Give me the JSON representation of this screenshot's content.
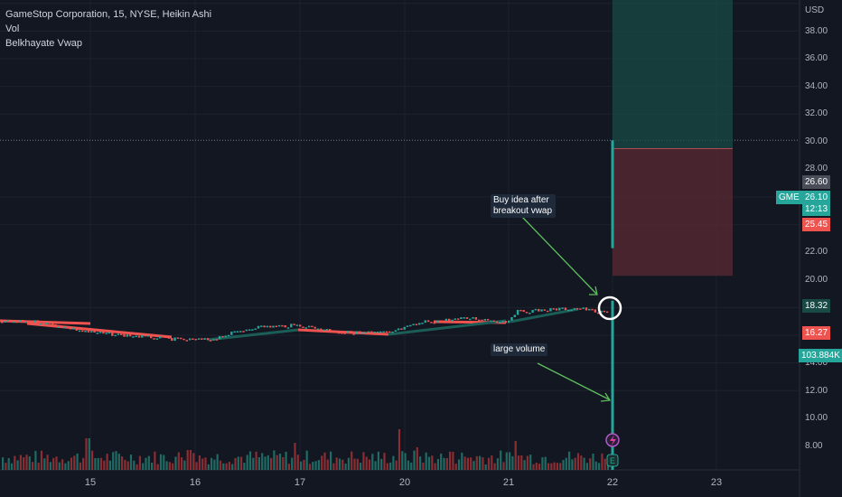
{
  "legend": {
    "title": "GameStop Corporation, 15, NYSE, Heikin Ashi",
    "vol": "Vol",
    "indicator": "Belkhayate Vwap"
  },
  "axis": {
    "currency": "USD",
    "price_ticks": [
      "38.00",
      "36.00",
      "34.00",
      "32.00",
      "30.00",
      "28.00",
      "22.00",
      "20.00",
      "14.00",
      "12.00",
      "10.00",
      "8.00"
    ],
    "time_ticks": [
      "15",
      "16",
      "17",
      "20",
      "21",
      "22",
      "23"
    ]
  },
  "tags": {
    "symbol": "GME",
    "stop_top": "26.60",
    "last_price": "26.10",
    "countdown": "12:13",
    "entry": "25.45",
    "vwap": "18.32",
    "target_low": "16.27",
    "volume": "103.884K"
  },
  "notes": {
    "buy_idea": "Buy idea after breakout vwap",
    "large_volume": "large volume"
  },
  "colors": {
    "background": "#131722",
    "up": "#26a69a",
    "down": "#ef5350",
    "profit_zone": "#1a4a45",
    "loss_zone": "#5a2a33",
    "arrow": "#5fbf5f"
  },
  "icons": {
    "lightning": "lightning-icon",
    "earnings": "earnings-e-icon"
  }
}
